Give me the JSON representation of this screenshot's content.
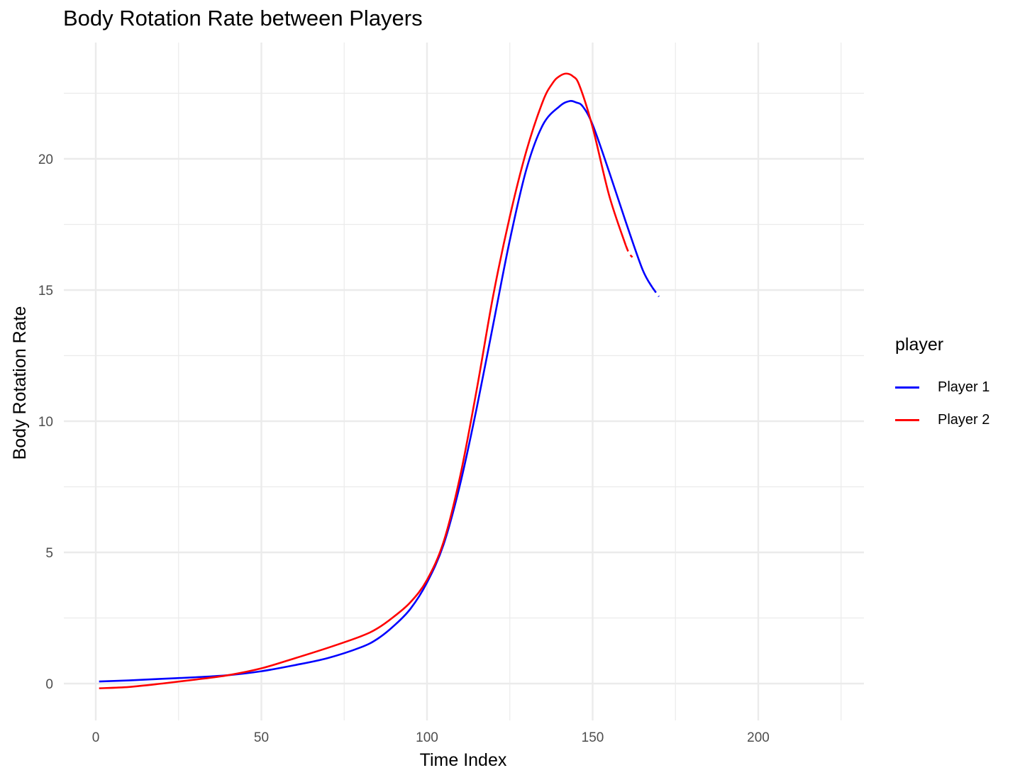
{
  "chart_data": {
    "type": "line",
    "title": "Body Rotation Rate between Players",
    "xlabel": "Time Index",
    "ylabel": "Body Rotation Rate",
    "xlim": [
      -5,
      230
    ],
    "ylim": [
      -1.3,
      24.8
    ],
    "x_ticks": [
      0,
      50,
      100,
      150,
      200
    ],
    "y_ticks": [
      0,
      5,
      10,
      15,
      20
    ],
    "grid": true,
    "legend": {
      "title": "player",
      "position": "right"
    },
    "series": [
      {
        "name": "Player 1",
        "color": "#0000ff",
        "x": [
          1,
          10,
          20,
          30,
          40,
          50,
          60,
          70,
          80,
          85,
          90,
          95,
          100,
          105,
          110,
          115,
          120,
          125,
          130,
          135,
          140,
          143,
          145,
          147,
          150,
          155,
          160,
          165,
          168
        ],
        "y": [
          0.08,
          0.12,
          0.18,
          0.24,
          0.32,
          0.47,
          0.7,
          0.97,
          1.38,
          1.7,
          2.2,
          2.85,
          3.85,
          5.3,
          7.6,
          10.5,
          13.7,
          16.9,
          19.6,
          21.3,
          22.0,
          22.2,
          22.15,
          22.0,
          21.3,
          19.5,
          17.6,
          15.8,
          15.1
        ]
      },
      {
        "name": "Player 2",
        "color": "#ff0000",
        "x": [
          1,
          10,
          20,
          30,
          40,
          50,
          60,
          70,
          80,
          85,
          90,
          95,
          100,
          105,
          110,
          115,
          120,
          125,
          130,
          135,
          138,
          140,
          142,
          144,
          146,
          150,
          155,
          160
        ],
        "y": [
          -0.18,
          -0.13,
          0.0,
          0.15,
          0.32,
          0.58,
          0.96,
          1.36,
          1.8,
          2.1,
          2.55,
          3.1,
          3.95,
          5.4,
          7.9,
          11.2,
          14.8,
          17.8,
          20.3,
          22.2,
          22.9,
          23.15,
          23.25,
          23.15,
          22.8,
          21.2,
          18.6,
          16.7
        ]
      },
      {
        "name": "Player 1",
        "color": "#0000ff",
        "x": [
          168,
          170
        ],
        "y": [
          15.1,
          14.75
        ]
      },
      {
        "name": "Player 2",
        "color": "#ff0000",
        "x": [
          160,
          161,
          162
        ],
        "y": [
          16.7,
          16.4,
          16.25
        ]
      }
    ]
  }
}
